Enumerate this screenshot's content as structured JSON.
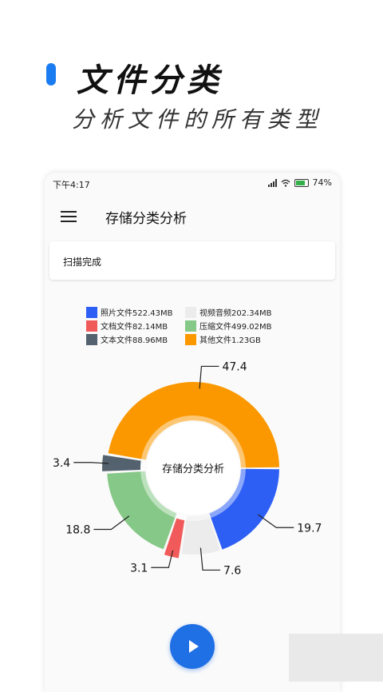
{
  "promo": {
    "title": "文件分类",
    "subtitle": "分析文件的所有类型"
  },
  "statusbar": {
    "time": "下午4:17",
    "battery": "74"
  },
  "appbar": {
    "title": "存储分类分析"
  },
  "scan": {
    "status": "扫描完成"
  },
  "chart_data": {
    "type": "pie",
    "center_label": "存储分类分析",
    "legend_position": "top",
    "series": [
      {
        "name": "照片文件522.43MB",
        "value": 19.7,
        "color": "#2d5ff5"
      },
      {
        "name": "视频音频202.34MB",
        "value": 7.6,
        "color": "#ececec"
      },
      {
        "name": "文档文件82.14MB",
        "value": 3.1,
        "color": "#f15a5a"
      },
      {
        "name": "压缩文件499.02MB",
        "value": 18.8,
        "color": "#86c887"
      },
      {
        "name": "文本文件88.96MB",
        "value": 3.4,
        "color": "#53626e"
      },
      {
        "name": "其他文件1.23GB",
        "value": 47.4,
        "color": "#fb9800"
      }
    ],
    "legend_order": [
      0,
      1,
      2,
      3,
      4,
      5
    ]
  }
}
